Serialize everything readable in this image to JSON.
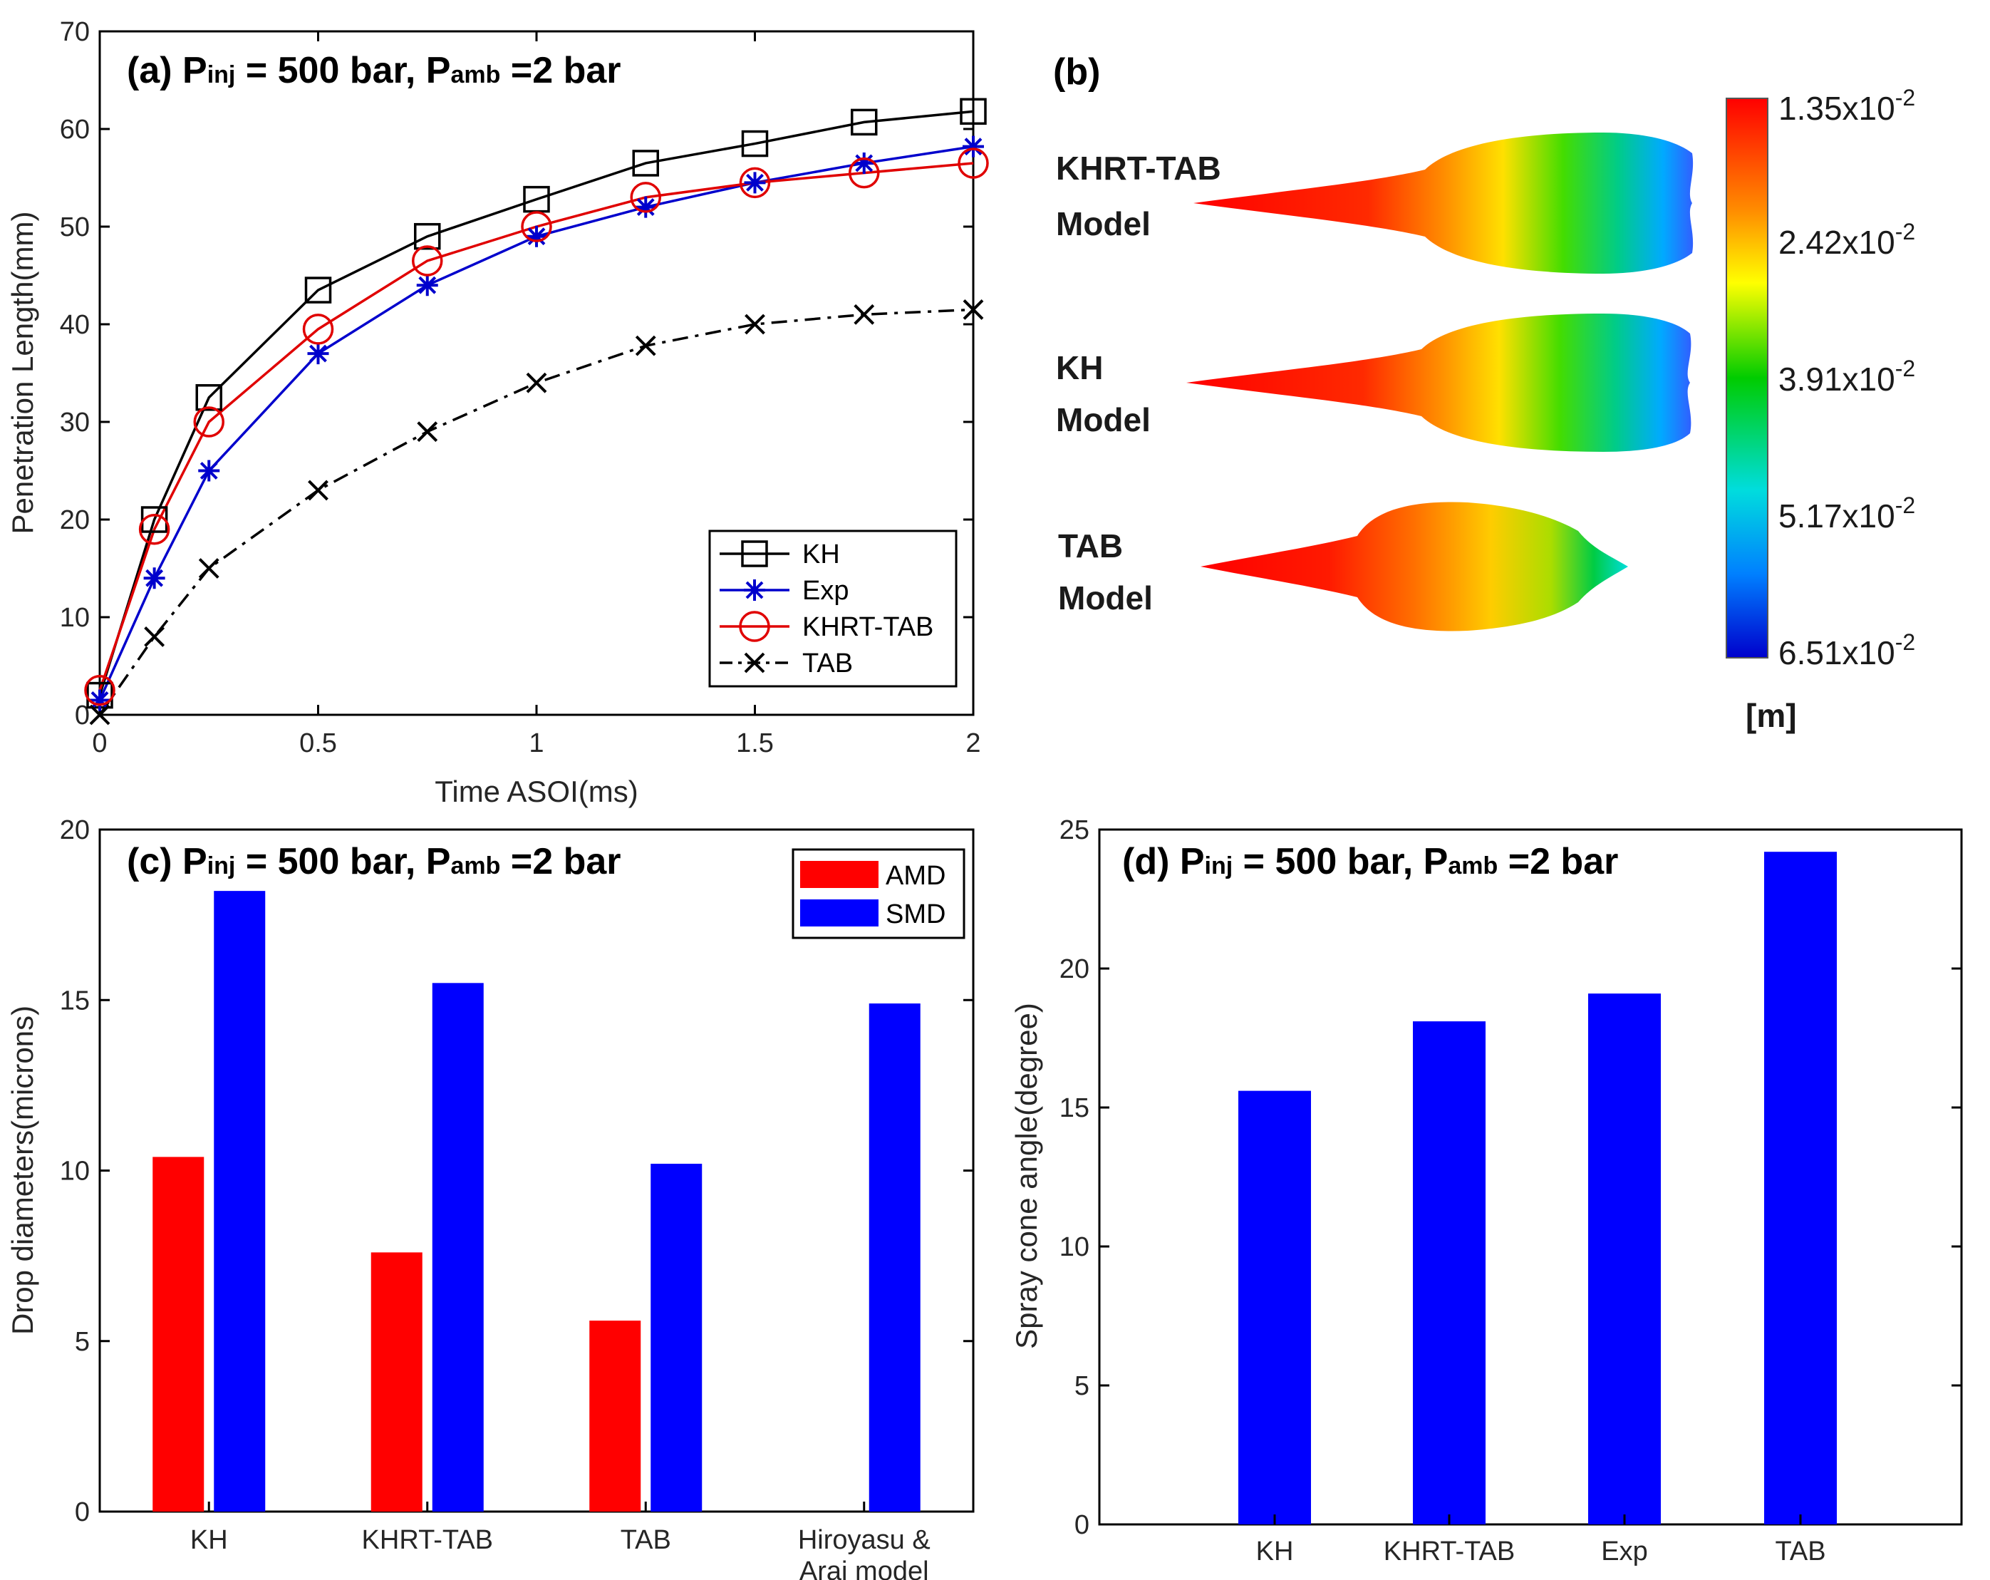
{
  "chart_data": [
    {
      "id": "a",
      "type": "line",
      "panel_label": "(a)",
      "title_parts": {
        "p1": "P",
        "s1": "inj",
        "mid": " = 500 bar, P",
        "s2": "amb",
        "end": " =2 bar"
      },
      "xlabel": "Time ASOI(ms)",
      "ylabel": "Penetration Length(mm)",
      "xlim": [
        0,
        2
      ],
      "ylim": [
        0,
        70
      ],
      "xticks": [
        0,
        0.5,
        1,
        1.5,
        2
      ],
      "xtick_labels": [
        "0",
        "0.5",
        "1",
        "1.5",
        "2"
      ],
      "yticks": [
        0,
        10,
        20,
        30,
        40,
        50,
        60,
        70
      ],
      "legend_position": "bottom-right",
      "x": [
        0,
        0.125,
        0.25,
        0.5,
        0.75,
        1,
        1.25,
        1.5,
        1.75,
        2
      ],
      "series": [
        {
          "name": "KH",
          "color": "#000000",
          "marker": "square",
          "dash": "solid",
          "values": [
            2,
            20,
            32.5,
            43.5,
            49,
            52.8,
            56.5,
            58.5,
            60.7,
            61.8
          ]
        },
        {
          "name": "Exp",
          "color": "#0000cc",
          "marker": "asterisk",
          "dash": "solid",
          "values": [
            1.5,
            14,
            25,
            37,
            44,
            49,
            52,
            54.5,
            56.5,
            58.2
          ]
        },
        {
          "name": "KHRT-TAB",
          "color": "#e00000",
          "marker": "circle",
          "dash": "solid",
          "values": [
            2.5,
            19,
            30,
            39.5,
            46.5,
            50,
            53,
            54.5,
            55.5,
            56.5
          ]
        },
        {
          "name": "TAB",
          "color": "#000000",
          "marker": "x",
          "dash": "dashdot",
          "values": [
            0,
            8,
            15,
            23,
            29,
            34,
            37.8,
            40,
            41,
            41.5
          ]
        }
      ]
    },
    {
      "id": "c",
      "type": "bar",
      "panel_label": "(c)",
      "title_parts": {
        "p1": "P",
        "s1": "inj",
        "mid": " = 500 bar, P",
        "s2": "amb",
        "end": " =2 bar"
      },
      "xlabel": "",
      "ylabel": "Drop diameters(microns)",
      "ylim": [
        0,
        20
      ],
      "yticks": [
        0,
        5,
        10,
        15,
        20
      ],
      "categories": [
        "KH",
        "KHRT-TAB",
        "TAB",
        "Hiroyasu & Arai model"
      ],
      "category_lines": [
        [
          "KH"
        ],
        [
          "KHRT-TAB"
        ],
        [
          "TAB"
        ],
        [
          "Hiroyasu &",
          "Arai model"
        ]
      ],
      "legend_position": "top-right",
      "series": [
        {
          "name": "AMD",
          "color": "#ff0000",
          "values": [
            10.4,
            7.6,
            5.6,
            null
          ]
        },
        {
          "name": "SMD",
          "color": "#0000ff",
          "values": [
            18.2,
            15.5,
            10.2,
            14.9
          ]
        }
      ]
    },
    {
      "id": "d",
      "type": "bar",
      "panel_label": "(d)",
      "title_parts": {
        "p1": "P",
        "s1": "inj",
        "mid": " = 500 bar, P",
        "s2": "amb",
        "end": " =2 bar"
      },
      "xlabel": "",
      "ylabel": "Spray cone angle(degree)",
      "ylim": [
        0,
        25
      ],
      "yticks": [
        0,
        5,
        10,
        15,
        20,
        25
      ],
      "categories": [
        "KH",
        "KHRT-TAB",
        "Exp",
        "TAB"
      ],
      "series": [
        {
          "name": "Spray cone angle",
          "color": "#0000ff",
          "values": [
            15.6,
            18.1,
            19.1,
            24.2
          ]
        }
      ]
    }
  ],
  "panel_b": {
    "label": "(b)",
    "sprays": [
      {
        "line1": "KHRT-TAB",
        "line2": "Model"
      },
      {
        "line1": "KH",
        "line2": "Model"
      },
      {
        "line1": "TAB",
        "line2": "Model"
      }
    ],
    "colorbar": {
      "ticks": [
        {
          "mant": "1.35x10",
          "exp": "-2"
        },
        {
          "mant": "2.42x10",
          "exp": "-2"
        },
        {
          "mant": "3.91x10",
          "exp": "-2"
        },
        {
          "mant": "5.17x10",
          "exp": "-2"
        },
        {
          "mant": "6.51x10",
          "exp": "-2"
        }
      ],
      "unit": "[m]"
    }
  }
}
